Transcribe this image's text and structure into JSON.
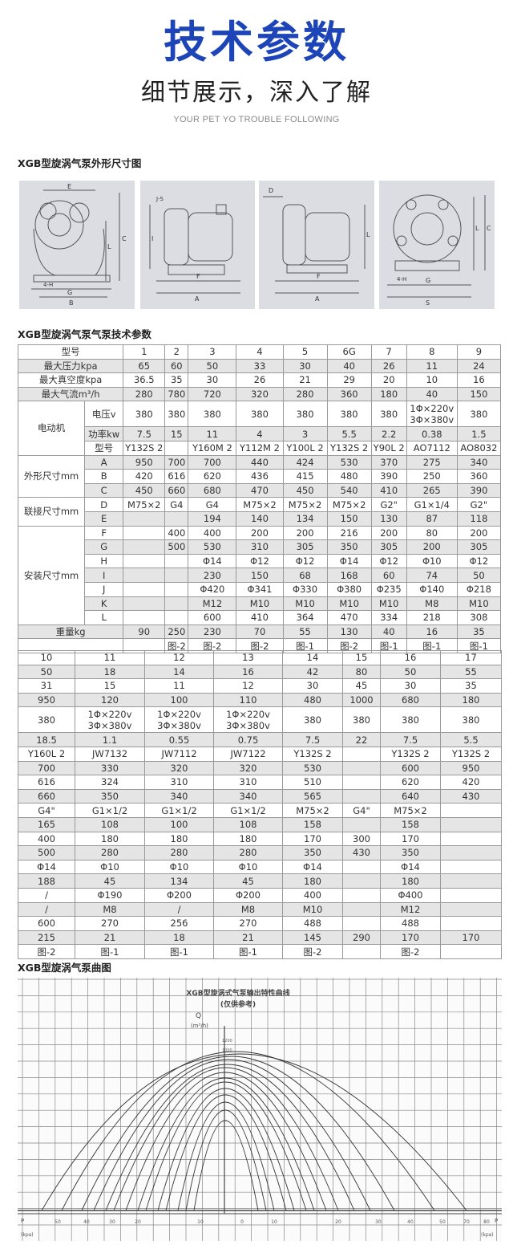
{
  "hero": {
    "title": "技术参数",
    "subtitle": "细节展示，深入了解",
    "english": "YOUR PET YO TROUBLE FOLLOWING",
    "accent_color": "#1d45b8"
  },
  "sections": {
    "dimensions": "XGB型旋涡气泵外形尺寸图",
    "parameters": "XGB型旋涡气泵气泵技术参数",
    "curves": "XGB型旋涡气泵曲图"
  },
  "drawings": {
    "front": {
      "labels": [
        "E",
        "L",
        "C",
        "4-H",
        "G",
        "B"
      ]
    },
    "side": {
      "labels": [
        "J-S",
        "I",
        "F",
        "A"
      ]
    },
    "side2": {
      "labels": [
        "D",
        "L",
        "F",
        "A"
      ]
    },
    "rear": {
      "labels": [
        "L",
        "C",
        "4-H",
        "G",
        "S"
      ]
    }
  },
  "table1": {
    "rows": [
      {
        "label": "型号",
        "values": [
          "1",
          "2",
          "3",
          "4",
          "5",
          "6G",
          "7",
          "8",
          "9"
        ]
      },
      {
        "label": "最大压力kpa",
        "values": [
          "65",
          "60",
          "50",
          "33",
          "30",
          "40",
          "26",
          "11",
          "24"
        ]
      },
      {
        "label": "最大真空度kpa",
        "values": [
          "36.5",
          "35",
          "30",
          "26",
          "21",
          "29",
          "20",
          "10",
          "16"
        ]
      },
      {
        "label": "最大气流m³/h",
        "values": [
          "280",
          "780",
          "720",
          "320",
          "280",
          "360",
          "180",
          "40",
          "150"
        ]
      },
      {
        "group": "电动机",
        "sub": "电压v",
        "tall": true,
        "values": [
          "380",
          "380",
          "380",
          "380",
          "380",
          "380",
          "380",
          "1Φ×220v\n3Φ×380v",
          "380"
        ]
      },
      {
        "group": "电动机",
        "sub": "功率kw",
        "values": [
          "7.5",
          "15",
          "11",
          "4",
          "3",
          "5.5",
          "2.2",
          "0.38",
          "1.5"
        ]
      },
      {
        "group": "电动机",
        "sub": "型号",
        "values": [
          "Y132S 2",
          "",
          "Y160M 2",
          "Y112M 2",
          "Y100L 2",
          "Y132S 2",
          "Y90L 2",
          "AO7112",
          "AO8032"
        ]
      },
      {
        "group": "外形尺寸mm",
        "sub": "A",
        "values": [
          "950",
          "700",
          "700",
          "440",
          "424",
          "530",
          "370",
          "275",
          "340"
        ]
      },
      {
        "group": "外形尺寸mm",
        "sub": "B",
        "values": [
          "420",
          "616",
          "620",
          "436",
          "415",
          "480",
          "390",
          "250",
          "360"
        ]
      },
      {
        "group": "外形尺寸mm",
        "sub": "C",
        "values": [
          "450",
          "660",
          "680",
          "470",
          "450",
          "540",
          "410",
          "265",
          "390"
        ]
      },
      {
        "group": "联接尺寸mm",
        "sub": "D",
        "values": [
          "M75×2",
          "G4",
          "G4",
          "M75×2",
          "M75×2",
          "M75×2",
          "G2\"",
          "G1×1/4",
          "G2\""
        ]
      },
      {
        "group": "联接尺寸mm",
        "sub": "E",
        "values": [
          "",
          "",
          "194",
          "140",
          "134",
          "150",
          "130",
          "87",
          "118"
        ]
      },
      {
        "group": "安装尺寸mm",
        "sub": "F",
        "values": [
          "",
          "400",
          "400",
          "200",
          "200",
          "216",
          "200",
          "80",
          "200"
        ]
      },
      {
        "group": "安装尺寸mm",
        "sub": "G",
        "values": [
          "",
          "500",
          "530",
          "310",
          "305",
          "350",
          "305",
          "200",
          "305"
        ]
      },
      {
        "group": "安装尺寸mm",
        "sub": "H",
        "values": [
          "",
          "",
          "Φ14",
          "Φ12",
          "Φ12",
          "Φ14",
          "Φ12",
          "Φ10",
          "Φ12"
        ]
      },
      {
        "group": "安装尺寸mm",
        "sub": "I",
        "values": [
          "",
          "",
          "230",
          "150",
          "68",
          "168",
          "60",
          "74",
          "50"
        ]
      },
      {
        "group": "安装尺寸mm",
        "sub": "J",
        "values": [
          "",
          "",
          "Φ420",
          "Φ341",
          "Φ330",
          "Φ380",
          "Φ235",
          "Φ140",
          "Φ218"
        ]
      },
      {
        "group": "安装尺寸mm",
        "sub": "K",
        "values": [
          "",
          "",
          "M12",
          "M10",
          "M10",
          "M10",
          "M10",
          "M8",
          "M10"
        ]
      },
      {
        "group": "安装尺寸mm",
        "sub": "L",
        "values": [
          "",
          "",
          "600",
          "410",
          "364",
          "470",
          "334",
          "218",
          "308"
        ]
      },
      {
        "label": "重量kg",
        "values": [
          "90",
          "250",
          "230",
          "70",
          "55",
          "130",
          "40",
          "16",
          "35"
        ]
      },
      {
        "label": "",
        "values": [
          "",
          "图-2",
          "图-2",
          "图-2",
          "图-1",
          "图-2",
          "图-1",
          "图-1",
          "图-1"
        ]
      }
    ]
  },
  "table2": {
    "rows": [
      {
        "values": [
          "10",
          "11",
          "12",
          "13",
          "14",
          "15",
          "16",
          "17"
        ]
      },
      {
        "values": [
          "50",
          "18",
          "14",
          "16",
          "42",
          "80",
          "50",
          "55"
        ]
      },
      {
        "values": [
          "31",
          "15",
          "11",
          "12",
          "30",
          "45",
          "30",
          "35"
        ]
      },
      {
        "values": [
          "950",
          "120",
          "100",
          "110",
          "480",
          "1000",
          "680",
          "180"
        ]
      },
      {
        "tall": true,
        "values": [
          "380",
          "1Φ×220v\n3Φ×380v",
          "1Φ×220v\n3Φ×380v",
          "1Φ×220v\n3Φ×380v",
          "380",
          "380",
          "380",
          "380"
        ]
      },
      {
        "values": [
          "18.5",
          "1.1",
          "0.55",
          "0.75",
          "7.5",
          "22",
          "7.5",
          "5.5"
        ]
      },
      {
        "values": [
          "Y160L 2",
          "JW7132",
          "JW7112",
          "JW7122",
          "Y132S 2",
          "",
          "Y132S 2",
          "Y132S 2"
        ]
      },
      {
        "values": [
          "700",
          "330",
          "320",
          "320",
          "530",
          "",
          "600",
          "950"
        ]
      },
      {
        "values": [
          "616",
          "324",
          "310",
          "310",
          "510",
          "",
          "620",
          "420"
        ]
      },
      {
        "values": [
          "660",
          "350",
          "340",
          "340",
          "565",
          "",
          "640",
          "430"
        ]
      },
      {
        "values": [
          "G4\"",
          "G1×1/2",
          "G1×1/2",
          "G1×1/2",
          "M75×2",
          "G4\"",
          "M75×2",
          ""
        ]
      },
      {
        "values": [
          "165",
          "108",
          "100",
          "108",
          "158",
          "",
          "158",
          ""
        ]
      },
      {
        "values": [
          "400",
          "180",
          "180",
          "180",
          "170",
          "300",
          "170",
          ""
        ]
      },
      {
        "values": [
          "500",
          "280",
          "280",
          "280",
          "350",
          "430",
          "350",
          ""
        ]
      },
      {
        "values": [
          "Φ14",
          "Φ10",
          "Φ10",
          "Φ10",
          "Φ14",
          "",
          "Φ14",
          ""
        ]
      },
      {
        "values": [
          "188",
          "45",
          "134",
          "45",
          "180",
          "",
          "180",
          ""
        ]
      },
      {
        "values": [
          "/",
          "Φ190",
          "Φ200",
          "Φ200",
          "400",
          "",
          "Φ400",
          ""
        ]
      },
      {
        "values": [
          "/",
          "M8",
          "/",
          "M8",
          "M10",
          "",
          "M12",
          ""
        ]
      },
      {
        "values": [
          "600",
          "270",
          "256",
          "270",
          "488",
          "",
          "488",
          ""
        ]
      },
      {
        "values": [
          "215",
          "21",
          "18",
          "21",
          "145",
          "290",
          "170",
          "170"
        ]
      },
      {
        "values": [
          "图-2",
          "图-1",
          "图-1",
          "图-1",
          "图-2",
          "",
          "图-2",
          ""
        ]
      }
    ]
  },
  "chart_data": {
    "type": "line",
    "title": "XGB型旋涡式气泵输出特性曲线",
    "subtitle": "(仅供参考)",
    "ylabel": "Q",
    "yunit": "(m³/h)",
    "y_ticks": [
      "1200",
      "1000"
    ],
    "x_ticks_left": [
      "50",
      "40",
      "30",
      "20",
      "10"
    ],
    "x_ticks_center": "0",
    "x_ticks_right": [
      "10",
      "20",
      "30",
      "40",
      "50",
      "70",
      "80"
    ],
    "x_label_left": "P",
    "x_label_right": "P",
    "x_unit": "(kpa)",
    "grid": true
  }
}
